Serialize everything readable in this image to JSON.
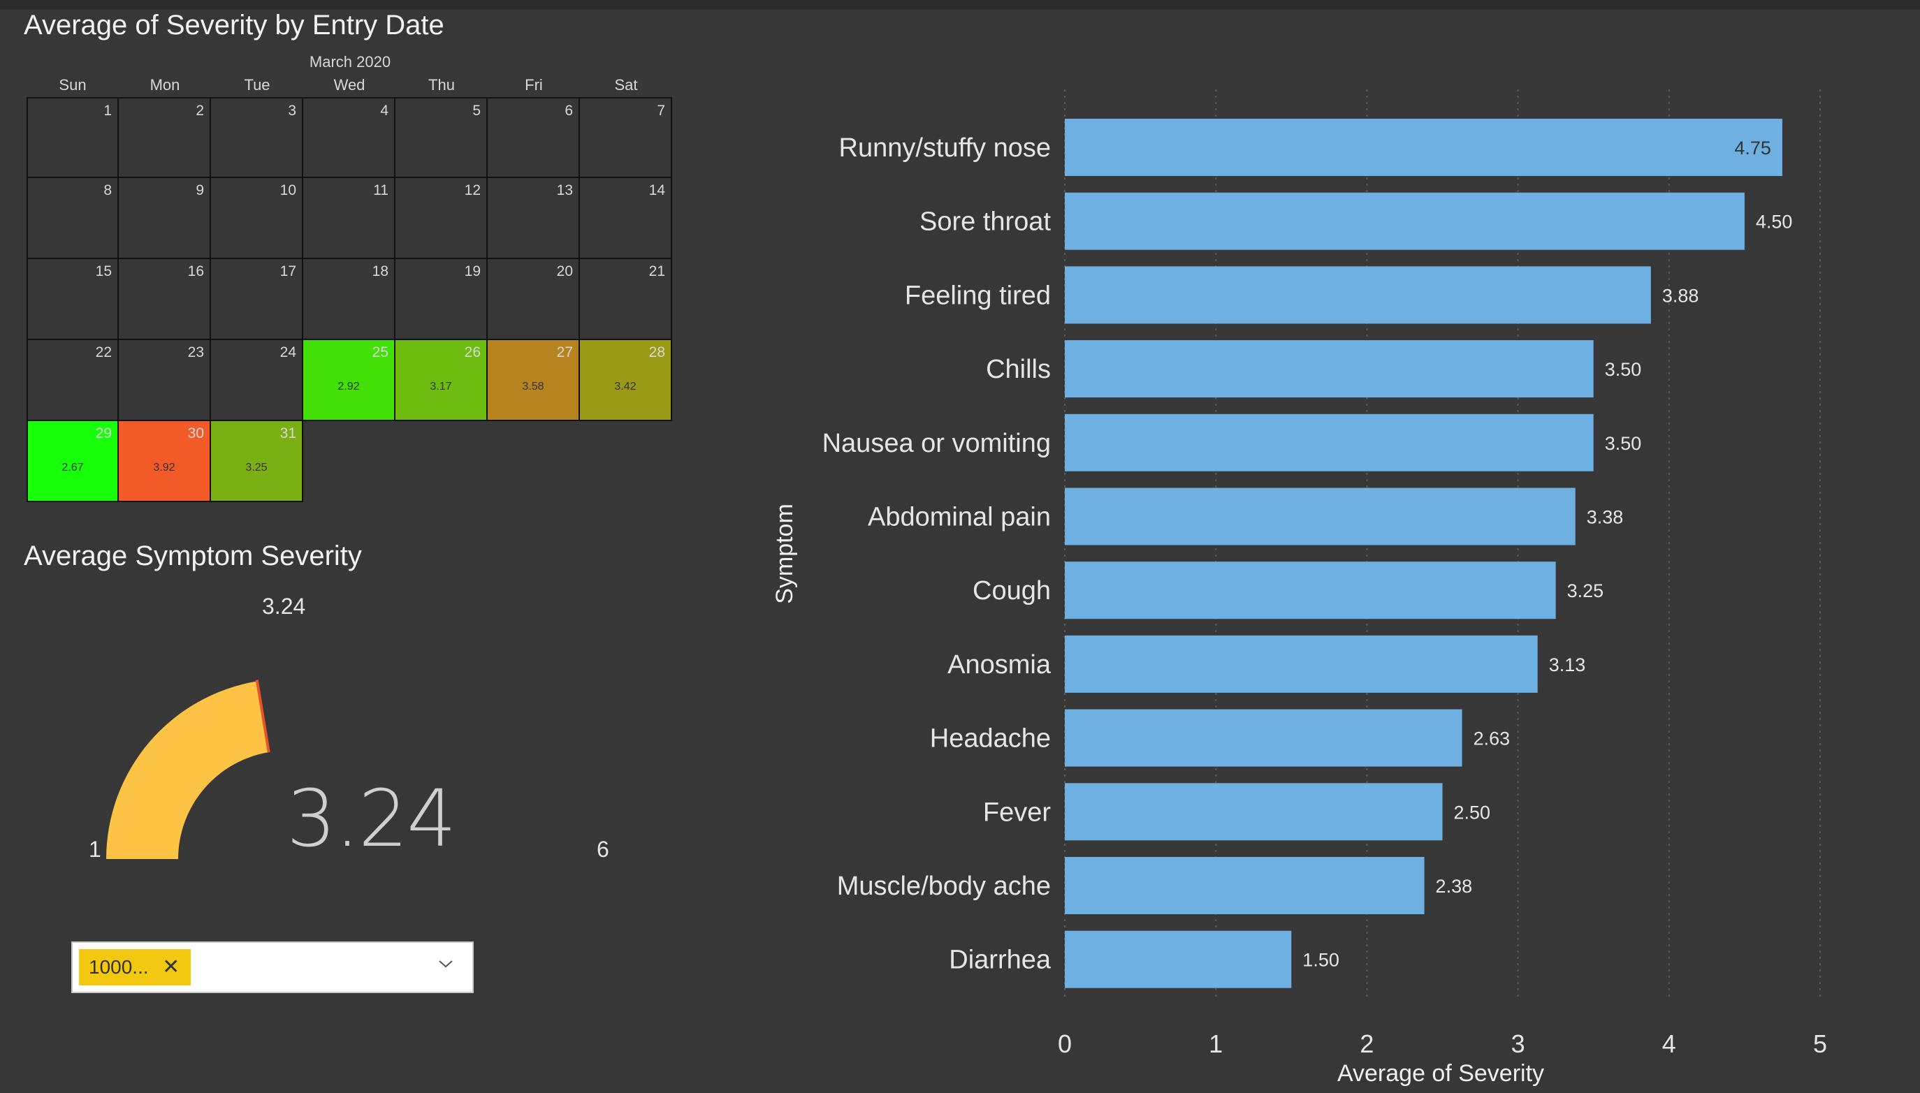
{
  "calendar": {
    "title": "Average of Severity by Entry Date",
    "month_label": "March 2020",
    "weekdays": [
      "Sun",
      "Mon",
      "Tue",
      "Wed",
      "Thu",
      "Fri",
      "Sat"
    ],
    "first_weekday_index": 0,
    "days_in_month": 31,
    "values": [
      {
        "day": 25,
        "value": "2.92",
        "color": "#43e008"
      },
      {
        "day": 26,
        "value": "3.17",
        "color": "#6fbc10"
      },
      {
        "day": 27,
        "value": "3.58",
        "color": "#b7831f"
      },
      {
        "day": 28,
        "value": "3.42",
        "color": "#9a9a16"
      },
      {
        "day": 29,
        "value": "2.67",
        "color": "#18ff0a"
      },
      {
        "day": 30,
        "value": "3.92",
        "color": "#f25a27"
      },
      {
        "day": 31,
        "value": "3.25",
        "color": "#7bb015"
      }
    ]
  },
  "gauge": {
    "title": "Average Symptom Severity",
    "value": 3.24,
    "value_label": "3.24",
    "target_label": "3.24",
    "min_label": "1",
    "max_label": "6",
    "min": 1,
    "max": 6,
    "fill_color": "#fdc344",
    "target_color": "#e8542a"
  },
  "slicer": {
    "chip_label": "1000...",
    "chip_color": "#f2c811"
  },
  "chart_data": {
    "type": "bar",
    "orientation": "horizontal",
    "categories": [
      "Runny/stuffy nose",
      "Sore throat",
      "Feeling tired",
      "Chills",
      "Nausea or vomiting",
      "Abdominal pain",
      "Cough",
      "Anosmia",
      "Headache",
      "Fever",
      "Muscle/body ache",
      "Diarrhea"
    ],
    "values": [
      4.75,
      4.5,
      3.88,
      3.5,
      3.5,
      3.38,
      3.25,
      3.13,
      2.63,
      2.5,
      2.38,
      1.5
    ],
    "value_labels": [
      "4.75",
      "4.50",
      "3.88",
      "3.50",
      "3.50",
      "3.38",
      "3.25",
      "3.13",
      "2.63",
      "2.50",
      "2.38",
      "1.50"
    ],
    "xlabel": "Average of Severity",
    "ylabel": "Symptom",
    "xlim": [
      0,
      5
    ],
    "xticks": [
      0,
      1,
      2,
      3,
      4,
      5
    ],
    "grid": "vertical dotted",
    "bar_color": "#6eb0e2"
  }
}
